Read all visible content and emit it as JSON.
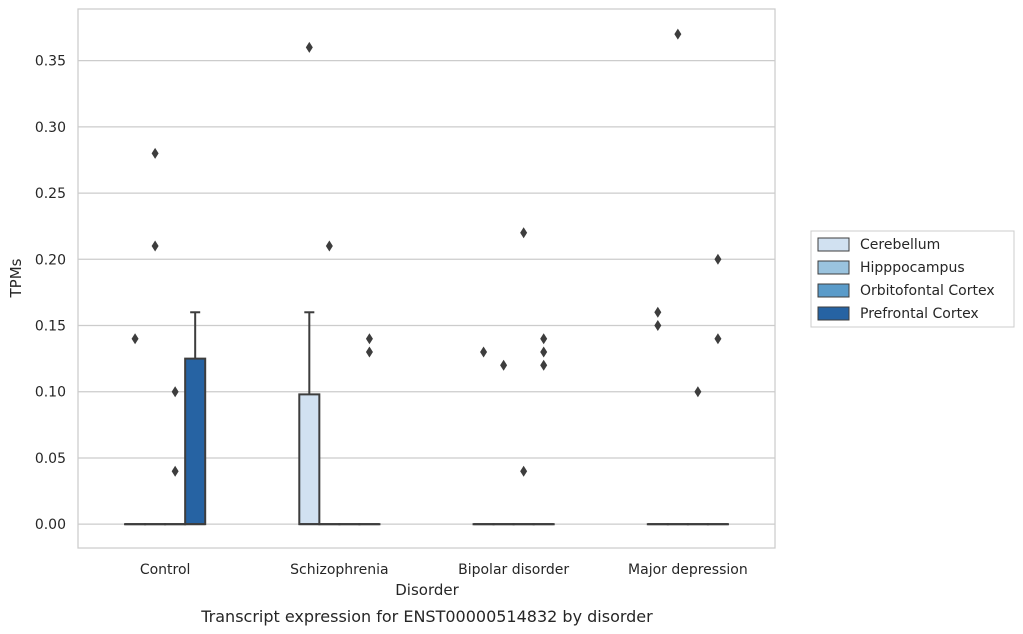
{
  "chart_data": {
    "type": "box",
    "xlabel": "Disorder",
    "ylabel": "TPMs",
    "caption": "Transcript expression for ENST00000514832 by disorder",
    "categories": [
      "Control",
      "Schizophrenia",
      "Bipolar disorder",
      "Major depression"
    ],
    "ylim": [
      -0.018,
      0.389
    ],
    "yticks": [
      0.0,
      0.05,
      0.1,
      0.15,
      0.2,
      0.25,
      0.3,
      0.35
    ],
    "ytick_labels": [
      "0.00",
      "0.05",
      "0.10",
      "0.15",
      "0.20",
      "0.25",
      "0.30",
      "0.35"
    ],
    "grid": "horizontal",
    "legend_position": "right",
    "series": [
      {
        "name": "Cerebellum",
        "color": "#d1e1f1",
        "boxes": [
          {
            "q1": 0,
            "median": 0,
            "q3": 0,
            "whisker_low": 0,
            "whisker_high": 0,
            "outliers": [
              0.14
            ]
          },
          {
            "q1": 0,
            "median": 0,
            "q3": 0.098,
            "whisker_low": 0,
            "whisker_high": 0.16,
            "outliers": [
              0.36
            ]
          },
          {
            "q1": 0,
            "median": 0,
            "q3": 0,
            "whisker_low": 0,
            "whisker_high": 0,
            "outliers": [
              0.13
            ]
          },
          {
            "q1": 0,
            "median": 0,
            "q3": 0,
            "whisker_low": 0,
            "whisker_high": 0,
            "outliers": [
              0.16,
              0.15
            ]
          }
        ]
      },
      {
        "name": "Hipppocampus",
        "color": "#9ac3de",
        "boxes": [
          {
            "q1": 0,
            "median": 0,
            "q3": 0,
            "whisker_low": 0,
            "whisker_high": 0,
            "outliers": [
              0.28,
              0.21
            ]
          },
          {
            "q1": 0,
            "median": 0,
            "q3": 0,
            "whisker_low": 0,
            "whisker_high": 0,
            "outliers": [
              0.21
            ]
          },
          {
            "q1": 0,
            "median": 0,
            "q3": 0,
            "whisker_low": 0,
            "whisker_high": 0,
            "outliers": [
              0.12
            ]
          },
          {
            "q1": 0,
            "median": 0,
            "q3": 0,
            "whisker_low": 0,
            "whisker_high": 0,
            "outliers": [
              0.37
            ]
          }
        ]
      },
      {
        "name": "Orbitofontal Cortex",
        "color": "#5a9bc9",
        "boxes": [
          {
            "q1": 0,
            "median": 0,
            "q3": 0,
            "whisker_low": 0,
            "whisker_high": 0,
            "outliers": [
              0.1,
              0.04
            ]
          },
          {
            "q1": 0,
            "median": 0,
            "q3": 0,
            "whisker_low": 0,
            "whisker_high": 0,
            "outliers": []
          },
          {
            "q1": 0,
            "median": 0,
            "q3": 0,
            "whisker_low": 0,
            "whisker_high": 0,
            "outliers": [
              0.22,
              0.04
            ]
          },
          {
            "q1": 0,
            "median": 0,
            "q3": 0,
            "whisker_low": 0,
            "whisker_high": 0,
            "outliers": [
              0.1
            ]
          }
        ]
      },
      {
        "name": "Prefrontal Cortex",
        "color": "#2663a3",
        "boxes": [
          {
            "q1": 0,
            "median": 0,
            "q3": 0.125,
            "whisker_low": 0,
            "whisker_high": 0.16,
            "outliers": []
          },
          {
            "q1": 0,
            "median": 0,
            "q3": 0,
            "whisker_low": 0,
            "whisker_high": 0,
            "outliers": [
              0.14,
              0.13
            ]
          },
          {
            "q1": 0,
            "median": 0,
            "q3": 0,
            "whisker_low": 0,
            "whisker_high": 0,
            "outliers": [
              0.14,
              0.13,
              0.12
            ]
          },
          {
            "q1": 0,
            "median": 0,
            "q3": 0,
            "whisker_low": 0,
            "whisker_high": 0,
            "outliers": [
              0.2,
              0.14
            ]
          }
        ]
      }
    ]
  }
}
